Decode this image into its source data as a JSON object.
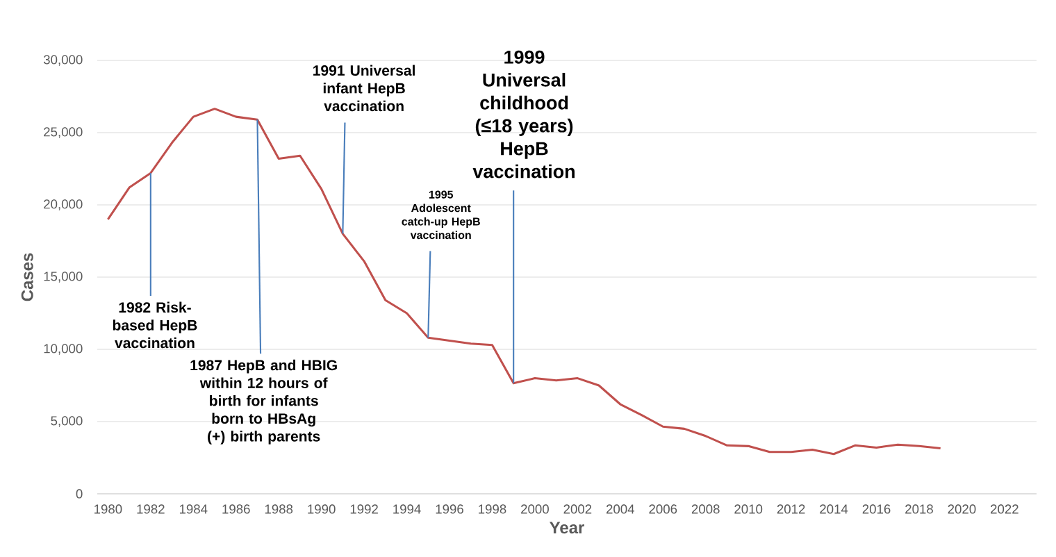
{
  "chart_data": {
    "type": "line",
    "xlabel": "Year",
    "ylabel": "Cases",
    "x": [
      1980,
      1981,
      1982,
      1983,
      1984,
      1985,
      1986,
      1987,
      1988,
      1989,
      1990,
      1991,
      1992,
      1993,
      1994,
      1995,
      1996,
      1997,
      1998,
      1999,
      2000,
      2001,
      2002,
      2003,
      2004,
      2005,
      2006,
      2007,
      2008,
      2009,
      2010,
      2011,
      2012,
      2013,
      2014,
      2015,
      2016,
      2017,
      2018,
      2019
    ],
    "series": [
      {
        "color": "#c0504d",
        "values": [
          19000,
          21200,
          22200,
          24300,
          26100,
          26650,
          26100,
          25900,
          23200,
          23400,
          21100,
          18000,
          16100,
          13400,
          12500,
          10800,
          10600,
          10400,
          10300,
          7650,
          8000,
          7850,
          8000,
          7500,
          6200,
          5450,
          4650,
          4500,
          4000,
          3350,
          3300,
          2900,
          2900,
          3050,
          2750,
          3350,
          3200,
          3400,
          3300,
          3150
        ]
      }
    ],
    "xlim": [
      1979.5,
      2023.5
    ],
    "xticks": [
      1980,
      1982,
      1984,
      1986,
      1988,
      1990,
      1992,
      1994,
      1996,
      1998,
      2000,
      2002,
      2004,
      2006,
      2008,
      2010,
      2012,
      2014,
      2016,
      2018,
      2020,
      2022
    ],
    "ylim": [
      0,
      30000
    ],
    "yticks": [
      0,
      {
        "value": 5000,
        "label": "5,000"
      },
      {
        "value": 10000,
        "label": "10,000"
      },
      {
        "value": 15000,
        "label": "15,000"
      },
      {
        "value": 20000,
        "label": "20,000"
      },
      {
        "value": 25000,
        "label": "25,000"
      },
      {
        "value": 30000,
        "label": "30,000"
      }
    ],
    "grid": "y",
    "marker": "none",
    "line_style": "solid",
    "annotations": [
      {
        "text": "1982 Risk-based HepB vaccination",
        "x": 1982,
        "y": 22200
      },
      {
        "text": "1987 HepB and HBIG within 12 hours of birth for infants born to HBsAg (+) birth parents",
        "x": 1987,
        "y": 25900
      },
      {
        "text": "1991 Universal infant HepB vaccination",
        "x": 1991,
        "y": 18000
      },
      {
        "text": "1995 Adolescent catch-up HepB vaccination",
        "x": 1995,
        "y": 10800
      },
      {
        "text": "1999 Universal childhood (≤18 years) HepB vaccination",
        "x": 1999,
        "y": 7650
      }
    ]
  }
}
